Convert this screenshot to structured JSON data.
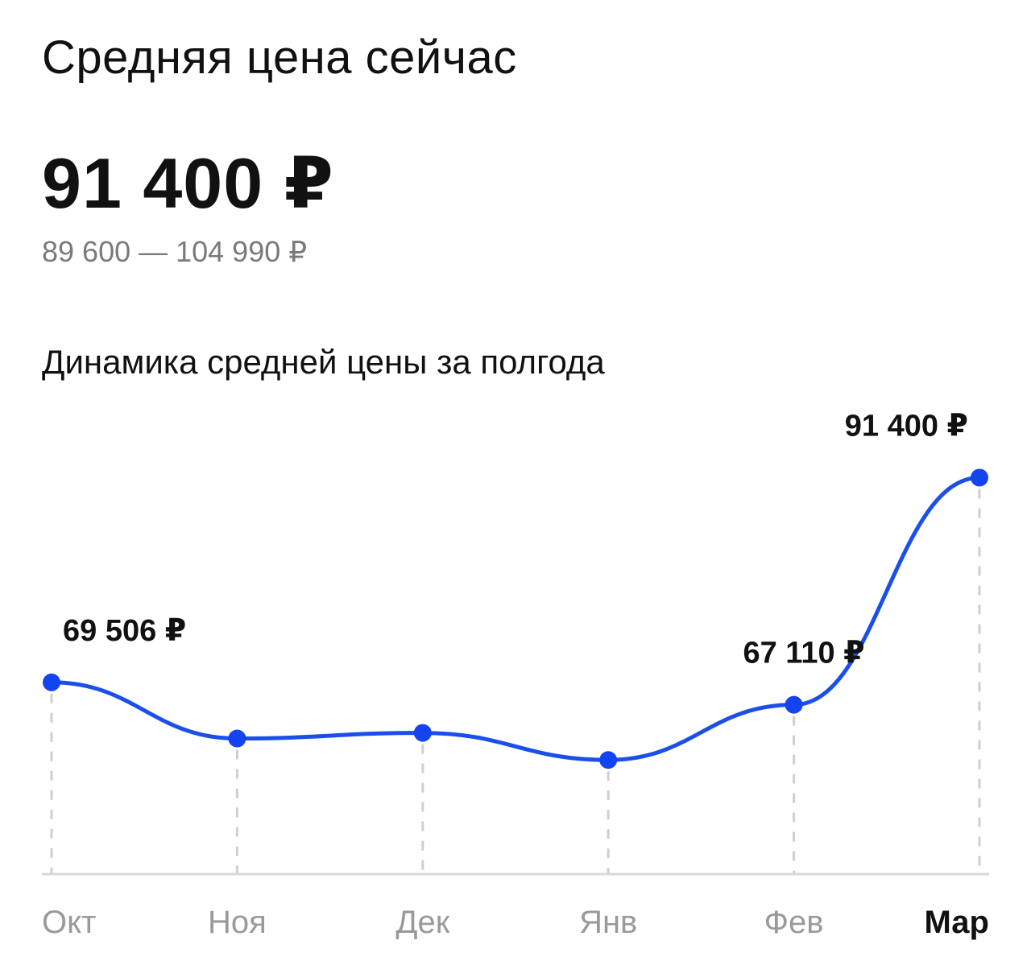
{
  "header": {
    "title": "Средняя цена сейчас",
    "price": "91 400 ₽",
    "range": "89 600 — 104 990 ₽"
  },
  "chart_title": "Динамика средней цены за полгода",
  "chart_data": {
    "type": "line",
    "categories": [
      "Окт",
      "Ноя",
      "Дек",
      "Янв",
      "Фев",
      "Мар"
    ],
    "active_category": "Мар",
    "series": [
      {
        "values": [
          69506,
          63500,
          64100,
          61200,
          67110,
          91400
        ]
      }
    ],
    "data_labels": [
      {
        "index": 0,
        "text": "69 506 ₽"
      },
      {
        "index": 4,
        "text": "67 110 ₽"
      },
      {
        "index": 5,
        "text": "91 400 ₽"
      }
    ],
    "ylim": [
      49000,
      96000
    ],
    "grid": "vertical-dashed",
    "colors": {
      "line": "#1a4fea",
      "point": "#1444f0",
      "grid": "#cfcfcf",
      "axis": "#d9d9d9",
      "month_inactive": "#9a9a9a",
      "month_active": "#111111"
    }
  }
}
